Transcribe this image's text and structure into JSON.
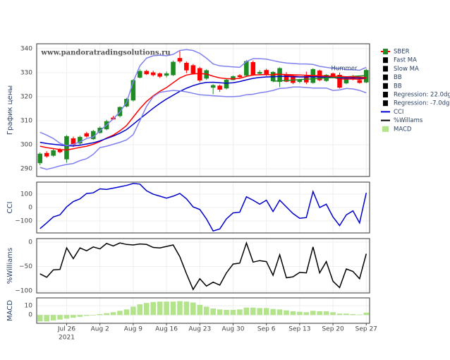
{
  "chart_data": [
    {
      "type": "candlestick",
      "ylabel": "График цены",
      "annotation": "Hummer",
      "watermark": "www.pandoratradingsolutions.ru",
      "grid": true,
      "x_year_label": "2021",
      "categories": [
        null,
        null,
        null,
        null,
        "Jul 26",
        null,
        null,
        null,
        null,
        "Aug 2",
        null,
        null,
        null,
        null,
        "Aug 9",
        null,
        null,
        null,
        null,
        "Aug 16",
        null,
        null,
        null,
        null,
        "Aug 23",
        null,
        null,
        null,
        null,
        "Aug 30",
        null,
        null,
        null,
        null,
        "Sep 6",
        null,
        null,
        null,
        null,
        "Sep 13",
        null,
        null,
        null,
        null,
        "Sep 20",
        null,
        null,
        null,
        null,
        "Sep 27"
      ],
      "ylim": [
        286.8,
        342
      ],
      "yticks": [
        290,
        300,
        310,
        320,
        330,
        340
      ],
      "series": [
        {
          "name": "SBER",
          "increasing_color": "#1f8b24",
          "decreasing_color": "#ff0000",
          "open": [
            292.4,
            296.5,
            295.5,
            298.0,
            294.0,
            302.6,
            300.6,
            304.7,
            302.4,
            305.0,
            306.5,
            311.2,
            312.0,
            316.0,
            318.5,
            328.0,
            330.6,
            330.0,
            329.6,
            328.8,
            329.0,
            336.0,
            334.0,
            333.0,
            331.8,
            327.6,
            323.8,
            324.5,
            323.5,
            327.0,
            328.8,
            328.8,
            334.3,
            329.6,
            331.0,
            326.5,
            326.2,
            329.0,
            328.4,
            326.2,
            328.6,
            325.8,
            330.8,
            326.6,
            329.6,
            329.0,
            325.6,
            328.4,
            326.8,
            326.0
          ],
          "high": [
            296.8,
            297.3,
            298.4,
            298.6,
            304.0,
            303.4,
            303.8,
            305.4,
            306.2,
            307.6,
            310.4,
            312.0,
            316.0,
            319.5,
            327.2,
            331.4,
            331.2,
            330.8,
            330.0,
            330.4,
            335.0,
            339.0,
            334.6,
            333.6,
            332.4,
            331.4,
            325.2,
            325.0,
            327.6,
            328.8,
            329.4,
            335.2,
            335.0,
            331.0,
            331.6,
            330.6,
            332.2,
            330.2,
            329.0,
            327.4,
            330.4,
            331.8,
            331.2,
            329.4,
            330.0,
            330.0,
            328.4,
            329.0,
            327.4,
            331.6
          ],
          "low": [
            291.5,
            294.6,
            295.0,
            296.5,
            292.5,
            299.0,
            300.0,
            303.0,
            302.0,
            304.6,
            306.0,
            310.4,
            311.4,
            315.5,
            318.0,
            327.6,
            329.0,
            328.4,
            327.8,
            328.0,
            328.6,
            334.0,
            329.8,
            329.2,
            326.0,
            327.0,
            321.0,
            322.0,
            323.0,
            326.8,
            327.8,
            328.4,
            328.6,
            329.0,
            328.6,
            326.0,
            324.0,
            326.0,
            325.2,
            325.6,
            325.2,
            325.4,
            326.4,
            326.2,
            327.6,
            323.4,
            325.2,
            326.8,
            325.4,
            325.6
          ],
          "close": [
            296.2,
            295.2,
            297.6,
            297.0,
            303.5,
            300.0,
            303.2,
            303.5,
            305.6,
            307.0,
            309.7,
            310.6,
            315.6,
            319.0,
            326.8,
            330.6,
            329.4,
            329.0,
            328.4,
            329.6,
            334.4,
            334.7,
            331.0,
            329.7,
            326.8,
            330.9,
            324.7,
            323.0,
            327.0,
            328.4,
            328.2,
            334.7,
            329.0,
            330.2,
            329.2,
            330.2,
            331.8,
            326.3,
            325.8,
            327.0,
            326.0,
            331.4,
            326.9,
            329.0,
            328.0,
            323.8,
            327.7,
            327.2,
            325.8,
            331.0
          ]
        },
        {
          "name": "Fast MA",
          "color": "#ff0000",
          "values": [
            299.4,
            298.8,
            298.4,
            298.0,
            297.8,
            298.3,
            298.9,
            299.4,
            300.2,
            301.3,
            302.8,
            304.0,
            305.8,
            308.0,
            311.5,
            315.0,
            318.0,
            320.3,
            322.2,
            323.8,
            325.8,
            327.8,
            329.0,
            329.5,
            329.6,
            329.4,
            328.5,
            327.8,
            327.5,
            327.4,
            327.6,
            328.4,
            329.0,
            329.1,
            329.2,
            329.0,
            329.3,
            329.0,
            328.6,
            328.3,
            328.3,
            328.6,
            328.3,
            328.2,
            328.0,
            327.4,
            327.3,
            327.4,
            327.2,
            327.7
          ]
        },
        {
          "name": "Slow MA",
          "color": "#0000cc",
          "values": [
            301.0,
            300.5,
            300.2,
            299.9,
            299.6,
            299.5,
            299.8,
            300.3,
            300.8,
            301.6,
            302.6,
            303.6,
            304.8,
            306.3,
            308.5,
            310.8,
            313.0,
            315.2,
            317.2,
            319.0,
            320.6,
            322.2,
            323.5,
            324.6,
            325.4,
            325.9,
            326.0,
            325.8,
            325.6,
            325.8,
            326.3,
            327.0,
            327.6,
            328.0,
            328.2,
            328.3,
            328.4,
            328.4,
            328.3,
            328.2,
            328.2,
            328.3,
            328.2,
            328.1,
            328.0,
            327.8,
            327.8,
            327.8,
            327.7,
            327.9
          ]
        },
        {
          "name": "BB",
          "color": "#8080ee",
          "values": [
            305.2,
            304.0,
            302.6,
            300.6,
            299.6,
            300.2,
            301.2,
            302.6,
            303.2,
            305.8,
            308.2,
            310.8,
            313.6,
            317.6,
            326.2,
            332.8,
            336.0,
            337.0,
            337.2,
            337.0,
            337.6,
            339.2,
            339.6,
            339.2,
            338.0,
            336.0,
            333.6,
            332.8,
            332.6,
            332.4,
            332.2,
            334.6,
            335.8,
            335.8,
            335.6,
            335.0,
            334.4,
            334.0,
            333.8,
            333.6,
            333.6,
            333.4,
            332.6,
            332.2,
            331.8,
            331.8,
            331.2,
            331.2,
            331.0,
            332.2
          ]
        },
        {
          "name": "BB",
          "color": "#8080ee",
          "values": [
            290.6,
            289.8,
            290.4,
            291.2,
            291.8,
            292.2,
            293.4,
            294.2,
            296.0,
            298.8,
            299.4,
            300.2,
            301.0,
            302.0,
            304.2,
            310.0,
            316.0,
            320.0,
            321.8,
            322.2,
            322.6,
            322.4,
            322.0,
            321.4,
            320.8,
            320.6,
            320.4,
            320.2,
            320.0,
            320.0,
            320.2,
            320.8,
            321.0,
            321.6,
            322.0,
            322.6,
            323.4,
            323.6,
            324.0,
            324.0,
            323.8,
            323.6,
            323.6,
            323.6,
            322.6,
            322.8,
            323.4,
            323.2,
            322.6,
            321.6
          ]
        },
        {
          "name": "Regression: 22.0dg",
          "color": "#1f8b24",
          "values": [
            null,
            null,
            null,
            null,
            null,
            null,
            null,
            null,
            null,
            null,
            null,
            null,
            null,
            null,
            null,
            null,
            null,
            null,
            null,
            null,
            null,
            null,
            null,
            null,
            null,
            null,
            null,
            null,
            null,
            null,
            null,
            null,
            null,
            null,
            null,
            326.4,
            326.6,
            326.7,
            326.9,
            327.1,
            327.3,
            327.4,
            327.6,
            327.8,
            327.9,
            328.1,
            328.3,
            328.4,
            328.6,
            328.8
          ]
        },
        {
          "name": "Regression: -7.0dg",
          "color": "#ff0000",
          "values": [
            null,
            null,
            null,
            null,
            null,
            null,
            null,
            null,
            null,
            null,
            null,
            null,
            null,
            null,
            null,
            null,
            null,
            null,
            null,
            null,
            null,
            null,
            null,
            null,
            null,
            null,
            null,
            null,
            null,
            null,
            null,
            null,
            null,
            null,
            null,
            329.4,
            329.3,
            329.2,
            329.1,
            329.0,
            328.9,
            328.8,
            328.7,
            328.6,
            328.5,
            328.4,
            328.3,
            328.2,
            328.1,
            328.0
          ]
        }
      ]
    },
    {
      "type": "line",
      "ylabel": "CCI",
      "grid": true,
      "ylim": [
        -190,
        190
      ],
      "yticks": [
        {
          "value": -100,
          "label": "−100"
        },
        0,
        100
      ],
      "series": [
        {
          "name": "CCI",
          "color": "#0000cc",
          "values": [
            -158,
            -115,
            -70,
            -55,
            5,
            45,
            65,
            105,
            110,
            140,
            135,
            145,
            155,
            165,
            180,
            175,
            125,
            100,
            85,
            70,
            85,
            105,
            65,
            5,
            -15,
            -85,
            -175,
            -160,
            -85,
            -40,
            -35,
            80,
            55,
            25,
            55,
            -30,
            55,
            5,
            -45,
            -80,
            -75,
            120,
            0,
            25,
            -70,
            -135,
            -55,
            -25,
            -115,
            110
          ]
        }
      ]
    },
    {
      "type": "line",
      "ylabel": "%Williams",
      "grid": true,
      "ylim": [
        -104,
        7
      ],
      "yticks": [
        {
          "value": -100,
          "label": "−100"
        },
        {
          "value": -50,
          "label": "−50"
        },
        0
      ],
      "series": [
        {
          "name": "%Willams",
          "color": "#000000",
          "values": [
            -65,
            -72,
            -57,
            -56,
            -12,
            -34,
            -12,
            -18,
            -10,
            -14,
            -3,
            -8,
            -2,
            -5,
            -6,
            -4,
            -5,
            -11,
            -12,
            -9,
            -6,
            -30,
            -65,
            -97,
            -75,
            -90,
            -82,
            -88,
            -63,
            -45,
            -43,
            -2,
            -41,
            -38,
            -40,
            -68,
            -26,
            -73,
            -71,
            -62,
            -63,
            -10,
            -63,
            -40,
            -80,
            -93,
            -55,
            -60,
            -75,
            -24
          ]
        }
      ]
    },
    {
      "type": "bar",
      "ylabel": "MACD",
      "grid": true,
      "ylim": [
        -9,
        18.5
      ],
      "yticks": [
        0,
        10
      ],
      "series": [
        {
          "name": "MACD",
          "color": "#b3e38a",
          "values": [
            -7,
            -7,
            -6,
            -5,
            -4,
            -3,
            -2,
            -1,
            -0.5,
            1,
            2,
            3,
            4.5,
            6,
            9,
            11.5,
            13,
            14,
            14.5,
            14.5,
            14.5,
            15,
            14.5,
            13.5,
            11,
            9,
            7,
            6,
            5.5,
            5.5,
            6,
            8,
            8,
            7.5,
            7.5,
            6.5,
            6,
            5,
            4,
            3.5,
            3,
            4.5,
            4,
            4,
            3,
            1.5,
            1.5,
            1,
            0.5,
            2.5
          ]
        }
      ]
    }
  ]
}
